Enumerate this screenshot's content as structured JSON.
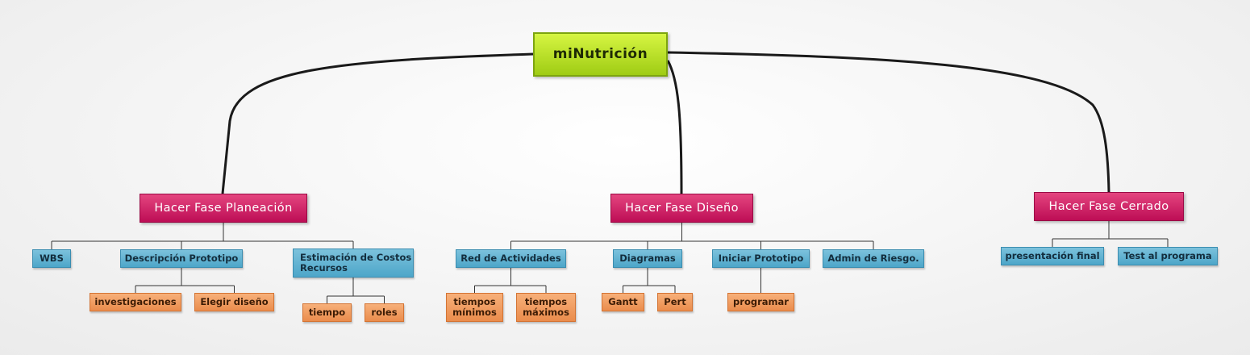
{
  "colors": {
    "root": "#b5de1f",
    "phase": "#d0216b",
    "task": "#5fb3d3",
    "subtask": "#f09b5e",
    "connector_main": "#1a1a1a",
    "connector_branch": "#333333"
  },
  "root": {
    "label": "miNutrición"
  },
  "phases": [
    {
      "label": "Hacer Fase Planeación",
      "tasks": [
        {
          "label": "WBS",
          "subtasks": []
        },
        {
          "label": "Descripción Prototipo",
          "subtasks": [
            {
              "label": "investigaciones"
            },
            {
              "label": "Elegir diseño"
            }
          ]
        },
        {
          "label": "Estimación de Costos Recursos",
          "subtasks": [
            {
              "label": "tiempo"
            },
            {
              "label": "roles"
            }
          ]
        }
      ]
    },
    {
      "label": "Hacer Fase Diseño",
      "tasks": [
        {
          "label": "Red de Actividades",
          "subtasks": [
            {
              "label": "tiempos mínimos"
            },
            {
              "label": "tiempos máximos"
            }
          ]
        },
        {
          "label": "Diagramas",
          "subtasks": [
            {
              "label": "Gantt"
            },
            {
              "label": "Pert"
            }
          ]
        },
        {
          "label": "Iniciar Prototipo",
          "subtasks": [
            {
              "label": "programar"
            }
          ]
        },
        {
          "label": "Admin de Riesgo.",
          "subtasks": []
        }
      ]
    },
    {
      "label": "Hacer Fase Cerrado",
      "tasks": [
        {
          "label": "presentación final",
          "subtasks": []
        },
        {
          "label": "Test al programa",
          "subtasks": []
        }
      ]
    }
  ]
}
